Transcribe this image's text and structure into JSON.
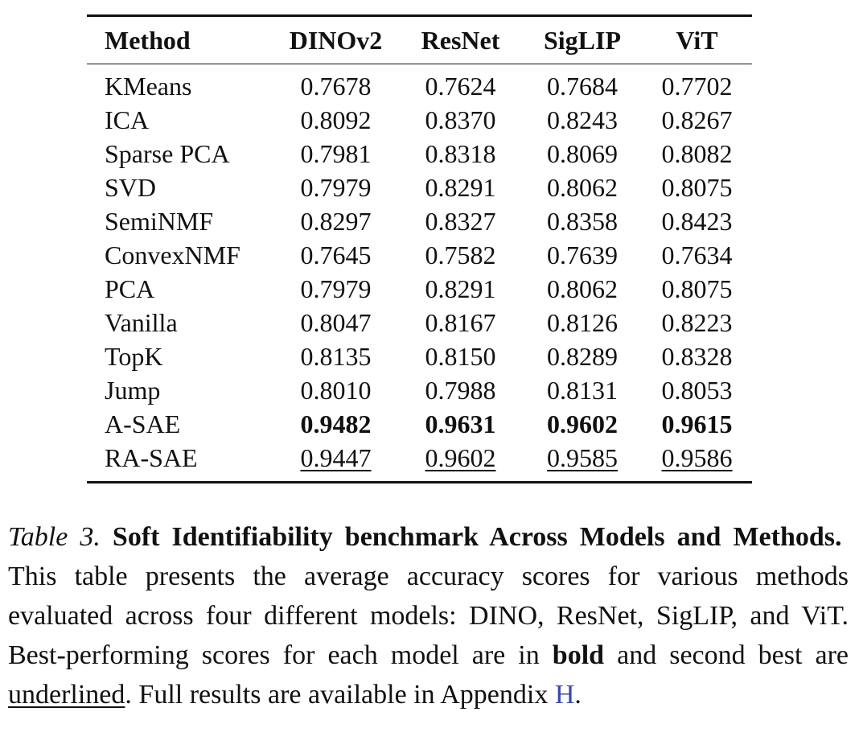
{
  "table": {
    "header": [
      "Method",
      "DINOv2",
      "ResNet",
      "SigLIP",
      "ViT"
    ],
    "rows": [
      [
        "KMeans",
        "0.7678",
        "0.7624",
        "0.7684",
        "0.7702"
      ],
      [
        "ICA",
        "0.8092",
        "0.8370",
        "0.8243",
        "0.8267"
      ],
      [
        "Sparse PCA",
        "0.7981",
        "0.8318",
        "0.8069",
        "0.8082"
      ],
      [
        "SVD",
        "0.7979",
        "0.8291",
        "0.8062",
        "0.8075"
      ],
      [
        "SemiNMF",
        "0.8297",
        "0.8327",
        "0.8358",
        "0.8423"
      ],
      [
        "ConvexNMF",
        "0.7645",
        "0.7582",
        "0.7639",
        "0.7634"
      ],
      [
        "PCA",
        "0.7979",
        "0.8291",
        "0.8062",
        "0.8075"
      ],
      [
        "Vanilla",
        "0.8047",
        "0.8167",
        "0.8126",
        "0.8223"
      ],
      [
        "TopK",
        "0.8135",
        "0.8150",
        "0.8289",
        "0.8328"
      ],
      [
        "Jump",
        "0.8010",
        "0.7988",
        "0.8131",
        "0.8053"
      ],
      [
        "A-SAE",
        "0.9482",
        "0.9631",
        "0.9602",
        "0.9615"
      ],
      [
        "RA-SAE",
        "0.9447",
        "0.9602",
        "0.9585",
        "0.9586"
      ]
    ]
  },
  "caption": {
    "label": "Table 3.",
    "title": "Soft Identifiability benchmark Across Models and Methods.",
    "text1": "This table presents the average accuracy scores for various methods evaluated across four different models: DINO, ResNet, SigLIP, and ViT. Best-performing scores for each model are in ",
    "bold": "bold",
    "text2": " and second best are ",
    "underlined": "underlined",
    "text3": ". Full results are avail­able in Appendix ",
    "link": "H",
    "text4": "."
  }
}
